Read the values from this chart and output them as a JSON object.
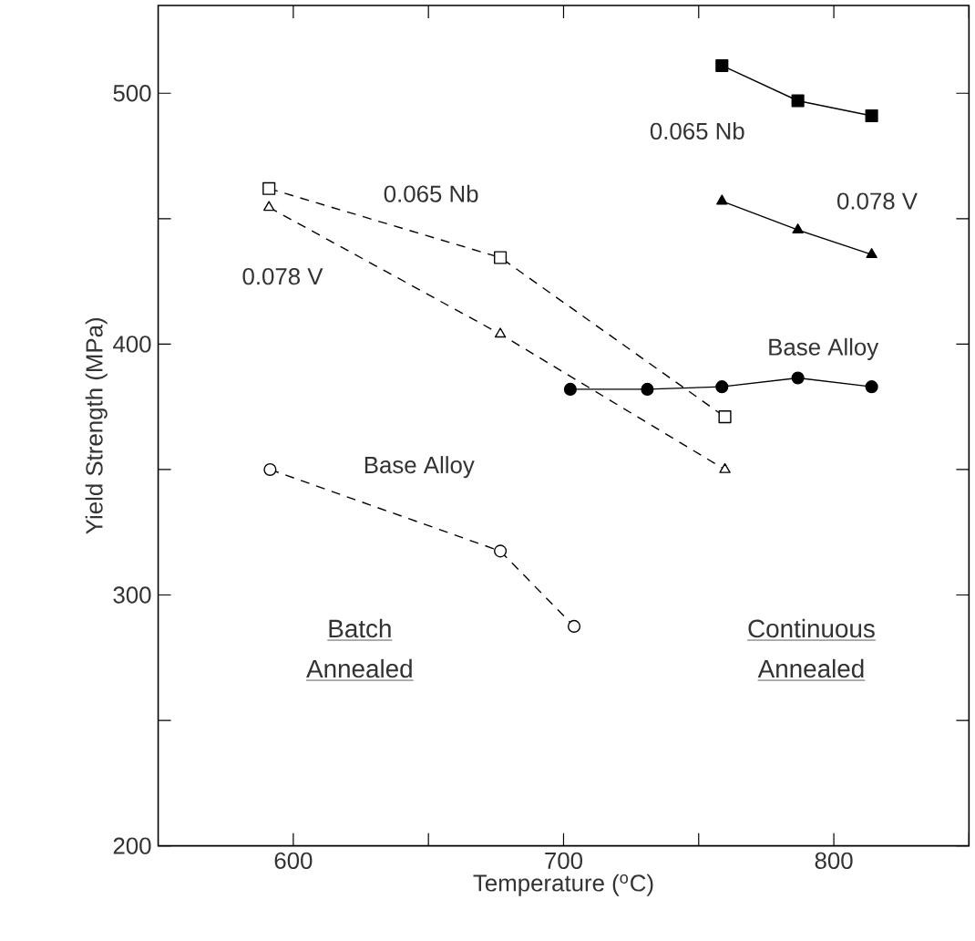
{
  "chart_data": {
    "type": "line",
    "xlabel": "Temperature ($^{o}$C)",
    "ylabel": "Yield Strength (MPa)",
    "xlim": [
      550,
      850
    ],
    "ylim": [
      200,
      535
    ],
    "xticks": [
      600,
      {
        "value": 650,
        "label": null
      },
      700,
      {
        "value": 750,
        "label": null
      },
      800,
      {
        "value": 850,
        "label": null
      }
    ],
    "yticks": [
      200,
      {
        "value": 250,
        "label": null
      },
      300,
      {
        "value": 350,
        "label": null
      },
      400,
      {
        "value": 450,
        "label": null
      },
      500
    ],
    "grid": false,
    "series": [
      {
        "name": "0.065 Nb",
        "color": "#000000",
        "marker": "square",
        "line_style": "dashed",
        "x": [
          591,
          676.6,
          759.7
        ],
        "values": [
          462,
          434.5,
          371
        ]
      },
      {
        "name": "0.078 V",
        "color": "#000000",
        "marker": "triangle",
        "line_style": "dashed",
        "x": [
          591,
          676.6,
          759.7
        ],
        "values": [
          454.5,
          404,
          350
        ]
      },
      {
        "name": "Base Alloy",
        "color": "#000000",
        "marker": "circle",
        "line_style": "dashed",
        "x": [
          591.4,
          676.6,
          703.9
        ],
        "values": [
          350,
          317.5,
          287.5
        ]
      },
      {
        "name": "0.065 Nb",
        "color": "#000000",
        "marker": "square",
        "line_style": "solid",
        "x": [
          758.6,
          786.7,
          814
        ],
        "values": [
          511,
          497,
          491
        ]
      },
      {
        "name": "0.078 V",
        "color": "#000000",
        "marker": "triangle",
        "line_style": "solid",
        "x": [
          758.6,
          786.7,
          814
        ],
        "values": [
          457,
          445.5,
          435.7
        ]
      },
      {
        "name": "Base Alloy",
        "color": "#000000",
        "marker": "circle",
        "line_style": "solid",
        "x": [
          702.5,
          731,
          758.6,
          786.7,
          814
        ],
        "values": [
          382,
          382,
          383,
          386.5,
          383
        ]
      }
    ],
    "annotations": [
      "Batch",
      "Annealed",
      "Continuous",
      "Annealed"
    ]
  }
}
